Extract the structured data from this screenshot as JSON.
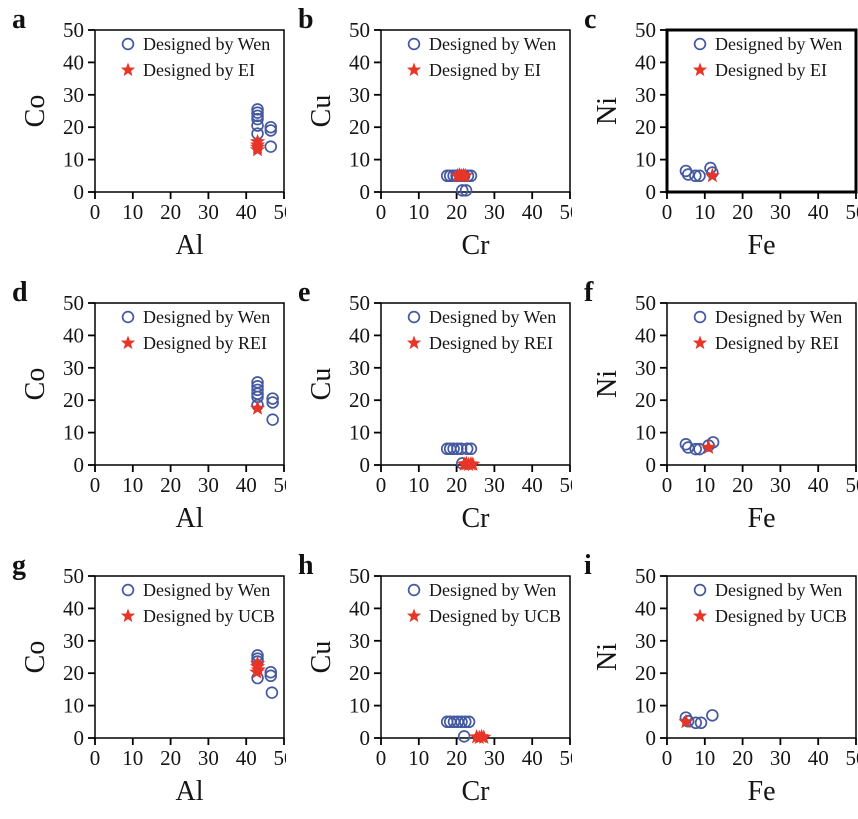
{
  "figure": {
    "background": "#ffffff",
    "text_color": "#151515",
    "frame_color": "#000000",
    "wen_color": "#44599f",
    "designed_color": "#e73527"
  },
  "chart_data": [
    {
      "type": "scatter",
      "label": "a",
      "xlabel": "Al",
      "ylabel": "Co",
      "xlim": [
        0,
        50
      ],
      "ylim": [
        0,
        50
      ],
      "ticks": [
        0,
        10,
        20,
        30,
        40,
        50
      ],
      "grid": false,
      "legend_position": "top-left",
      "bold_frame": false,
      "series": [
        {
          "name": "Designed by Wen",
          "marker": "circle",
          "color": "#44599f",
          "points": [
            [
              43,
              25.5
            ],
            [
              43,
              24.5
            ],
            [
              43,
              23.5
            ],
            [
              43,
              22.5
            ],
            [
              43,
              20.5
            ],
            [
              43,
              18
            ],
            [
              46.5,
              20
            ],
            [
              46.5,
              19
            ],
            [
              46.5,
              14
            ]
          ]
        },
        {
          "name": "Designed by EI",
          "marker": "star",
          "color": "#e73527",
          "points": [
            [
              43,
              15.5
            ],
            [
              43,
              14.5
            ],
            [
              43,
              13.8
            ],
            [
              43,
              13
            ]
          ]
        }
      ]
    },
    {
      "type": "scatter",
      "label": "b",
      "xlabel": "Cr",
      "ylabel": "Cu",
      "xlim": [
        0,
        50
      ],
      "ylim": [
        0,
        50
      ],
      "ticks": [
        0,
        10,
        20,
        30,
        40,
        50
      ],
      "grid": false,
      "legend_position": "top-left",
      "bold_frame": false,
      "series": [
        {
          "name": "Designed by Wen",
          "marker": "circle",
          "color": "#44599f",
          "points": [
            [
              17.5,
              5
            ],
            [
              18.3,
              5
            ],
            [
              19.2,
              5
            ],
            [
              20,
              5
            ],
            [
              21,
              5
            ],
            [
              22,
              5
            ],
            [
              23,
              5
            ],
            [
              23.8,
              5
            ],
            [
              21.5,
              0.5
            ],
            [
              22.5,
              0.5
            ]
          ]
        },
        {
          "name": "Designed by EI",
          "marker": "star",
          "color": "#e73527",
          "points": [
            [
              20.3,
              5
            ],
            [
              20.8,
              5.2
            ],
            [
              21.3,
              4.9
            ],
            [
              21.8,
              5.1
            ],
            [
              22.3,
              5
            ]
          ]
        }
      ]
    },
    {
      "type": "scatter",
      "label": "c",
      "xlabel": "Fe",
      "ylabel": "Ni",
      "xlim": [
        0,
        50
      ],
      "ylim": [
        0,
        50
      ],
      "ticks": [
        0,
        10,
        20,
        30,
        40,
        50
      ],
      "grid": false,
      "legend_position": "top-left",
      "bold_frame": true,
      "series": [
        {
          "name": "Designed by Wen",
          "marker": "circle",
          "color": "#44599f",
          "points": [
            [
              5,
              6.5
            ],
            [
              5.6,
              5.4
            ],
            [
              7.5,
              5
            ],
            [
              8.6,
              5
            ],
            [
              11.5,
              7.4
            ],
            [
              12,
              6
            ]
          ]
        },
        {
          "name": "Designed by EI",
          "marker": "star",
          "color": "#e73527",
          "points": [
            [
              12,
              5
            ]
          ]
        }
      ]
    },
    {
      "type": "scatter",
      "label": "d",
      "xlabel": "Al",
      "ylabel": "Co",
      "xlim": [
        0,
        50
      ],
      "ylim": [
        0,
        50
      ],
      "ticks": [
        0,
        10,
        20,
        30,
        40,
        50
      ],
      "grid": false,
      "legend_position": "top-left",
      "bold_frame": false,
      "series": [
        {
          "name": "Designed by Wen",
          "marker": "circle",
          "color": "#44599f",
          "points": [
            [
              43,
              25.5
            ],
            [
              43,
              24.3
            ],
            [
              43,
              23.2
            ],
            [
              43,
              22
            ],
            [
              43,
              21
            ],
            [
              43,
              18.5
            ],
            [
              47,
              20.5
            ],
            [
              47,
              19.3
            ],
            [
              47,
              14
            ]
          ]
        },
        {
          "name": "Designed by REI",
          "marker": "star",
          "color": "#e73527",
          "points": [
            [
              43,
              17.5
            ]
          ]
        }
      ]
    },
    {
      "type": "scatter",
      "label": "e",
      "xlabel": "Cr",
      "ylabel": "Cu",
      "xlim": [
        0,
        50
      ],
      "ylim": [
        0,
        50
      ],
      "ticks": [
        0,
        10,
        20,
        30,
        40,
        50
      ],
      "grid": false,
      "legend_position": "top-left",
      "bold_frame": false,
      "series": [
        {
          "name": "Designed by Wen",
          "marker": "circle",
          "color": "#44599f",
          "points": [
            [
              17.5,
              5
            ],
            [
              18.3,
              5
            ],
            [
              19.2,
              5
            ],
            [
              20.2,
              5
            ],
            [
              21.2,
              5
            ],
            [
              22.8,
              5
            ],
            [
              23.8,
              5
            ],
            [
              21.5,
              0.5
            ]
          ]
        },
        {
          "name": "Designed by REI",
          "marker": "star",
          "color": "#e73527",
          "points": [
            [
              22,
              0.2
            ],
            [
              22.6,
              0.4
            ],
            [
              23.2,
              0.1
            ],
            [
              23.8,
              0.3
            ],
            [
              24.3,
              0.2
            ]
          ]
        }
      ]
    },
    {
      "type": "scatter",
      "label": "f",
      "xlabel": "Fe",
      "ylabel": "Ni",
      "xlim": [
        0,
        50
      ],
      "ylim": [
        0,
        50
      ],
      "ticks": [
        0,
        10,
        20,
        30,
        40,
        50
      ],
      "grid": false,
      "legend_position": "top-left",
      "bold_frame": false,
      "series": [
        {
          "name": "Designed by Wen",
          "marker": "circle",
          "color": "#44599f",
          "points": [
            [
              5,
              6.4
            ],
            [
              5.6,
              5.4
            ],
            [
              7.6,
              4.9
            ],
            [
              8.6,
              4.9
            ],
            [
              11,
              6
            ],
            [
              12.2,
              7
            ]
          ]
        },
        {
          "name": "Designed by REI",
          "marker": "star",
          "color": "#e73527",
          "points": [
            [
              11,
              5.4
            ]
          ]
        }
      ]
    },
    {
      "type": "scatter",
      "label": "g",
      "xlabel": "Al",
      "ylabel": "Co",
      "xlim": [
        0,
        50
      ],
      "ylim": [
        0,
        50
      ],
      "ticks": [
        0,
        10,
        20,
        30,
        40,
        50
      ],
      "grid": false,
      "legend_position": "top-left",
      "bold_frame": false,
      "series": [
        {
          "name": "Designed by Wen",
          "marker": "circle",
          "color": "#44599f",
          "points": [
            [
              43,
              25.5
            ],
            [
              43,
              24.5
            ],
            [
              43,
              23.6
            ],
            [
              43,
              18.5
            ],
            [
              46.5,
              20.3
            ],
            [
              46.5,
              19.2
            ],
            [
              46.8,
              14
            ]
          ]
        },
        {
          "name": "Designed by UCB",
          "marker": "star",
          "color": "#e73527",
          "points": [
            [
              43,
              23
            ],
            [
              43,
              22
            ],
            [
              43.2,
              21
            ],
            [
              42.8,
              20.3
            ]
          ]
        }
      ]
    },
    {
      "type": "scatter",
      "label": "h",
      "xlabel": "Cr",
      "ylabel": "Cu",
      "xlim": [
        0,
        50
      ],
      "ylim": [
        0,
        50
      ],
      "ticks": [
        0,
        10,
        20,
        30,
        40,
        50
      ],
      "grid": false,
      "legend_position": "top-left",
      "bold_frame": false,
      "series": [
        {
          "name": "Designed by Wen",
          "marker": "circle",
          "color": "#44599f",
          "points": [
            [
              17.5,
              5
            ],
            [
              18.3,
              5
            ],
            [
              19.3,
              5
            ],
            [
              20.3,
              5
            ],
            [
              21.3,
              5
            ],
            [
              22.3,
              5
            ],
            [
              23.3,
              5
            ],
            [
              22,
              0.5
            ]
          ]
        },
        {
          "name": "Designed by UCB",
          "marker": "star",
          "color": "#e73527",
          "points": [
            [
              25.3,
              0.3
            ],
            [
              26,
              0.1
            ],
            [
              26.6,
              0.4
            ],
            [
              27.2,
              0.2
            ]
          ]
        }
      ]
    },
    {
      "type": "scatter",
      "label": "i",
      "xlabel": "Fe",
      "ylabel": "Ni",
      "xlim": [
        0,
        50
      ],
      "ylim": [
        0,
        50
      ],
      "ticks": [
        0,
        10,
        20,
        30,
        40,
        50
      ],
      "grid": false,
      "legend_position": "top-left",
      "bold_frame": false,
      "series": [
        {
          "name": "Designed by Wen",
          "marker": "circle",
          "color": "#44599f",
          "points": [
            [
              5,
              6.3
            ],
            [
              5.6,
              5.2
            ],
            [
              7.6,
              4.7
            ],
            [
              9,
              4.7
            ],
            [
              12,
              7
            ]
          ]
        },
        {
          "name": "Designed by UCB",
          "marker": "star",
          "color": "#e73527",
          "points": [
            [
              5,
              5
            ]
          ]
        }
      ]
    }
  ]
}
